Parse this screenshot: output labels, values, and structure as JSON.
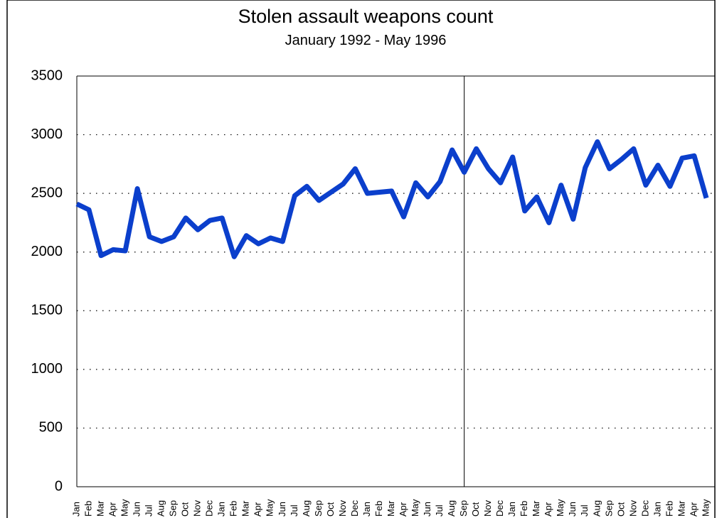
{
  "chart_data": {
    "type": "line",
    "title": "Stolen assault weapons count",
    "subtitle": "January 1992 - May 1996",
    "categories": [
      "Jan",
      "Feb",
      "Mar",
      "Apr",
      "May",
      "Jun",
      "Jul",
      "Aug",
      "Sep",
      "Oct",
      "Nov",
      "Dec",
      "Jan",
      "Feb",
      "Mar",
      "Apr",
      "May",
      "Jun",
      "Jul",
      "Aug",
      "Sep",
      "Oct",
      "Nov",
      "Dec",
      "Jan",
      "Feb",
      "Mar",
      "Apr",
      "May",
      "Jun",
      "Jul",
      "Aug",
      "Sep",
      "Oct",
      "Nov",
      "Dec",
      "Jan",
      "Feb",
      "Mar",
      "Apr",
      "May",
      "Jun",
      "Jul",
      "Aug",
      "Sep",
      "Oct",
      "Nov",
      "Dec",
      "Jan",
      "Feb",
      "Mar",
      "Apr",
      "May"
    ],
    "values": [
      2410,
      2360,
      1970,
      2020,
      2010,
      2540,
      2130,
      2090,
      2130,
      2290,
      2190,
      2270,
      2290,
      1960,
      2140,
      2070,
      2120,
      2090,
      2480,
      2560,
      2440,
      2510,
      2580,
      2710,
      2500,
      2510,
      2520,
      2300,
      2590,
      2470,
      2600,
      2870,
      2680,
      2880,
      2710,
      2590,
      2810,
      2350,
      2470,
      2250,
      2570,
      2280,
      2720,
      2940,
      2710,
      2790,
      2880,
      2570,
      2740,
      2560,
      2800,
      2820,
      2460
    ],
    "color": "#0b3fcc",
    "ylim": [
      0,
      3500
    ],
    "yticks": [
      0,
      500,
      1000,
      1500,
      2000,
      2500,
      3000,
      3500
    ],
    "grid": true,
    "reference_line_index": 32
  }
}
